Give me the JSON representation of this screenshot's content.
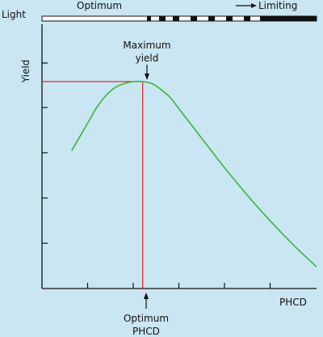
{
  "chart_data": {
    "type": "line",
    "xlabel": "PHCD",
    "ylabel": "Yield",
    "x_ticks": [
      "",
      "",
      "",
      "",
      "",
      ""
    ],
    "y_ticks": [
      "",
      "",
      "",
      "",
      ""
    ],
    "series": [
      {
        "color": "#3cb43c",
        "points": [
          [
            0.65,
            0.7
          ],
          [
            0.8,
            0.76
          ],
          [
            1.0,
            0.84
          ],
          [
            1.2,
            0.92
          ],
          [
            1.4,
            0.98
          ],
          [
            1.6,
            1.02
          ],
          [
            1.8,
            1.04
          ],
          [
            2.0,
            1.05
          ],
          [
            2.2,
            1.05
          ],
          [
            2.4,
            1.04
          ],
          [
            2.6,
            1.01
          ],
          [
            2.8,
            0.97
          ],
          [
            3.0,
            0.91
          ],
          [
            3.5,
            0.76
          ],
          [
            4.0,
            0.61
          ],
          [
            4.5,
            0.47
          ],
          [
            5.0,
            0.34
          ],
          [
            5.5,
            0.22
          ],
          [
            6.0,
            0.11
          ]
        ]
      }
    ],
    "optimum": {
      "x": 2.2,
      "y": 1.05,
      "color": "#e02020"
    },
    "grid": false,
    "annotations": {
      "maximum": [
        "Maximum",
        "yield"
      ],
      "optimum": [
        "Optimum",
        "PHCD"
      ]
    }
  },
  "light_bar": {
    "label": "Light",
    "optimum_label": "Optimum",
    "limiting_label": "Limiting"
  }
}
